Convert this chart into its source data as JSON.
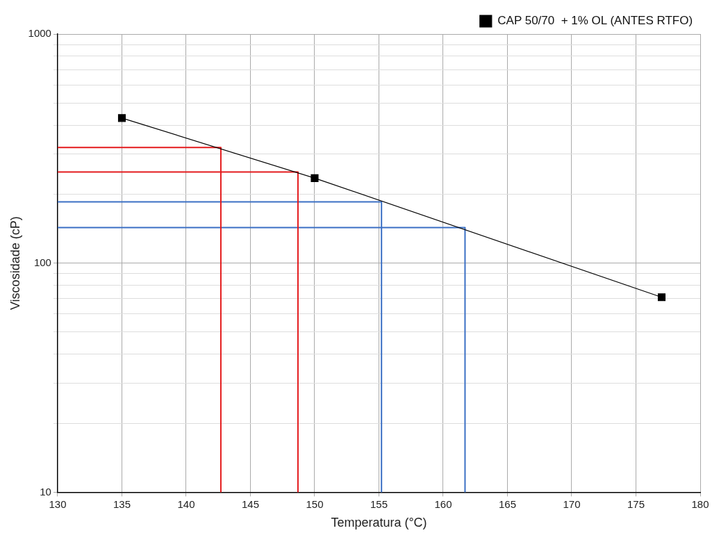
{
  "chart_data": {
    "type": "line",
    "xlabel": "Temperatura (°C)",
    "ylabel": "Viscosidade (cP)",
    "log": "y",
    "grid": true,
    "legend": "top right",
    "xlim": [
      130,
      180
    ],
    "xticks": [
      130,
      135,
      140,
      145,
      150,
      155,
      160,
      165,
      170,
      175,
      180
    ],
    "ylim": [
      10,
      1000
    ],
    "yticks": [
      10,
      {
        "value": 20,
        "label": null
      },
      {
        "value": 30,
        "label": null
      },
      {
        "value": 40,
        "label": null
      },
      {
        "value": 50,
        "label": null
      },
      {
        "value": 60,
        "label": null
      },
      {
        "value": 70,
        "label": null
      },
      {
        "value": 80,
        "label": null
      },
      {
        "value": 90,
        "label": null
      },
      100,
      {
        "value": 200,
        "label": null
      },
      {
        "value": 300,
        "label": null
      },
      {
        "value": 400,
        "label": null
      },
      {
        "value": 500,
        "label": null
      },
      {
        "value": 600,
        "label": null
      },
      {
        "value": 700,
        "label": null
      },
      {
        "value": 800,
        "label": null
      },
      {
        "value": 900,
        "label": null
      },
      1000
    ],
    "series": [
      {
        "name": "CAP 50/70  + 1% OL (ANTES RTFO)",
        "color": "#000000",
        "marker": "square",
        "x": [
          135,
          150,
          177
        ],
        "values": [
          430,
          235,
          71
        ]
      },
      {
        "color": "#e41a1c",
        "marker": "none",
        "x": [
          130,
          142.7,
          142.7
        ],
        "values": [
          320,
          320,
          10
        ]
      },
      {
        "color": "#e41a1c",
        "marker": "none",
        "x": [
          130,
          148.7,
          148.7
        ],
        "values": [
          250,
          250,
          10
        ]
      },
      {
        "color": "#3a6fc4",
        "marker": "none",
        "x": [
          130,
          155.2,
          155.2
        ],
        "values": [
          185,
          185,
          10
        ]
      },
      {
        "color": "#3a6fc4",
        "marker": "none",
        "x": [
          130,
          161.7,
          161.7
        ],
        "values": [
          143,
          143,
          10
        ]
      }
    ]
  }
}
